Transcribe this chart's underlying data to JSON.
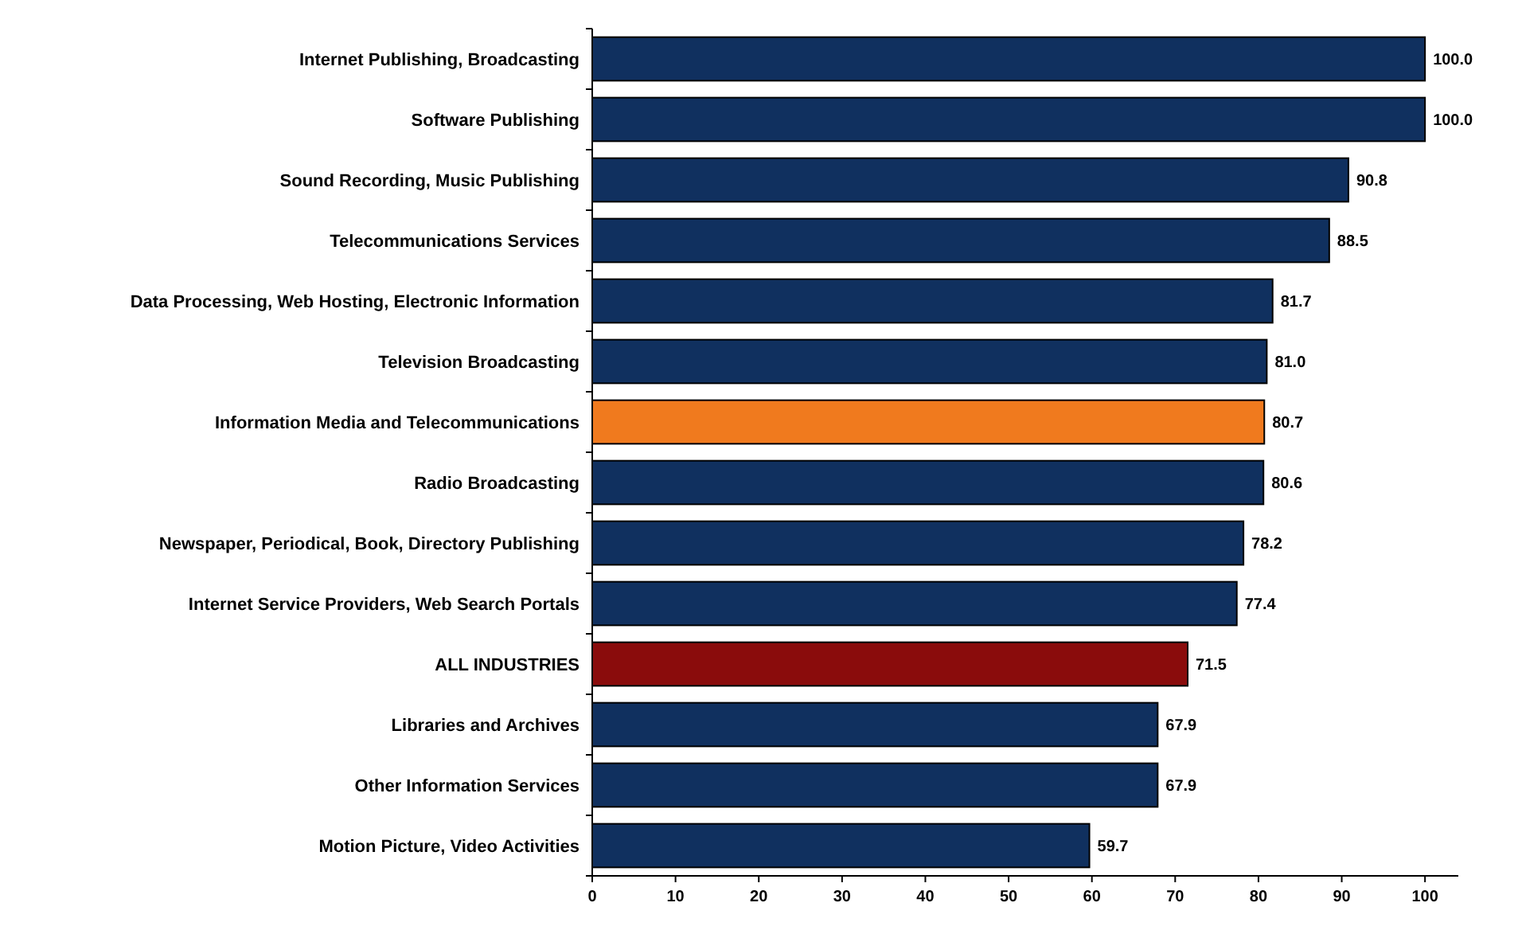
{
  "chart_data": {
    "type": "bar",
    "orientation": "horizontal",
    "categories": [
      "Internet Publishing, Broadcasting",
      "Software Publishing",
      "Sound Recording, Music Publishing",
      "Telecommunications Services",
      "Data Processing, Web Hosting, Electronic Information",
      "Television Broadcasting",
      "Information Media and Telecommunications",
      "Radio Broadcasting",
      "Newspaper, Periodical, Book, Directory Publishing",
      "Internet Service Providers, Web Search Portals",
      "ALL INDUSTRIES",
      "Libraries and Archives",
      "Other Information Services",
      "Motion Picture, Video Activities"
    ],
    "values": [
      100.0,
      100.0,
      90.8,
      88.5,
      81.7,
      81.0,
      80.7,
      80.6,
      78.2,
      77.4,
      71.5,
      67.9,
      67.9,
      59.7
    ],
    "colors": [
      "#10305f",
      "#10305f",
      "#10305f",
      "#10305f",
      "#10305f",
      "#10305f",
      "#f07a1e",
      "#10305f",
      "#10305f",
      "#10305f",
      "#8a0c0c",
      "#10305f",
      "#10305f",
      "#10305f"
    ],
    "value_labels": [
      "100.0",
      "100.0",
      "90.8",
      "88.5",
      "81.7",
      "81.0",
      "80.7",
      "80.6",
      "78.2",
      "77.4",
      "71.5",
      "67.9",
      "67.9",
      "59.7"
    ],
    "xlim": [
      0,
      104
    ],
    "xticks": [
      0,
      10,
      20,
      30,
      40,
      50,
      60,
      70,
      80,
      90,
      100
    ],
    "grid": false
  }
}
